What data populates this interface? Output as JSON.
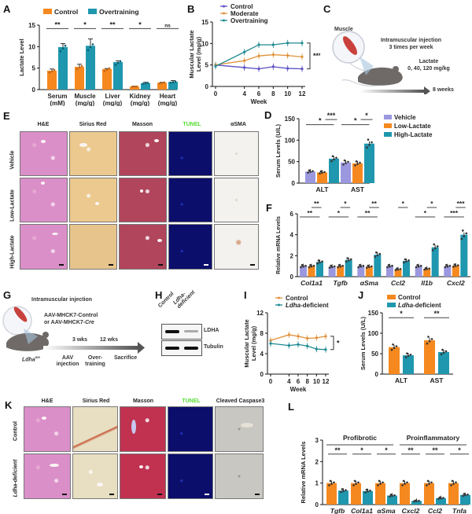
{
  "colors": {
    "orange": "#f5891f",
    "teal": "#1f97ae",
    "purple": "#9b98e0",
    "line_purple": "#5a4fc2",
    "line_orange": "#e0913a",
    "line_teal": "#1f8a92",
    "tunel_green": "#55dd33"
  },
  "panels": {
    "A": "A",
    "B": "B",
    "C": "C",
    "D": "D",
    "E": "E",
    "F": "F",
    "G": "G",
    "H": "H",
    "I": "I",
    "J": "J",
    "K": "K",
    "L": "L"
  },
  "chart_data": [
    {
      "id": "A",
      "type": "bar",
      "title": "",
      "ylabel": "Lactate Level",
      "xlabel": "",
      "ylim": [
        0,
        15
      ],
      "yticks": [
        "0",
        "5",
        "10",
        "15"
      ],
      "categories": [
        "Serum",
        "Muscle",
        "Liver",
        "Kidney",
        "Heart"
      ],
      "category_units": [
        "(mM)",
        "(mg/g)",
        "(mg/g)",
        "(mg/g)",
        "(mg/g)"
      ],
      "legend": [
        "Control",
        "Overtraining"
      ],
      "legend_position": "top",
      "series": [
        {
          "name": "Control",
          "values": [
            4.4,
            5.3,
            4.8,
            0.7,
            1.6
          ],
          "errors": [
            0.4,
            0.6,
            0.1,
            0.1,
            0.1
          ]
        },
        {
          "name": "Overtraining",
          "values": [
            9.9,
            10.2,
            6.4,
            1.5,
            1.8
          ],
          "errors": [
            0.8,
            1.6,
            0.3,
            0.2,
            0.3
          ]
        }
      ],
      "significance": [
        "**",
        "*",
        "**",
        "*",
        "ns"
      ]
    },
    {
      "id": "B",
      "type": "line",
      "ylabel": "Muscular Lactate Level (mg/g)",
      "xlabel": "Week",
      "xlim": [
        0,
        12
      ],
      "ylim": [
        0,
        15
      ],
      "x": [
        0,
        4,
        6,
        8,
        10,
        12
      ],
      "xticks": [
        "0",
        "4",
        "6",
        "8",
        "10",
        "12"
      ],
      "yticks": [
        "0",
        "5",
        "10",
        "15"
      ],
      "legend_position": "top",
      "series": [
        {
          "name": "Control",
          "values": [
            5.0,
            4.4,
            4.1,
            4.6,
            4.2,
            4.1
          ]
        },
        {
          "name": "Moderate",
          "values": [
            5.0,
            6.0,
            7.1,
            7.4,
            7.2,
            6.9
          ]
        },
        {
          "name": "Overtraining",
          "values": [
            4.7,
            8.0,
            9.7,
            9.7,
            10.1,
            10.1
          ]
        }
      ],
      "significance": "***"
    },
    {
      "id": "D",
      "type": "bar",
      "ylabel": "Serum Levels (U/L)",
      "ylim": [
        0,
        150
      ],
      "yticks": [
        "0",
        "50",
        "100",
        "150"
      ],
      "categories": [
        "ALT",
        "AST"
      ],
      "legend_position": "right",
      "series": [
        {
          "name": "Vehicle",
          "values": [
            27,
            48
          ]
        },
        {
          "name": "Low-Lactate",
          "values": [
            25,
            46
          ]
        },
        {
          "name": "High-Lactate",
          "values": [
            57,
            92
          ]
        }
      ],
      "significance": [
        {
          "category": "ALT",
          "outer": "*",
          "inner": "***"
        },
        {
          "category": "AST",
          "outer": "*",
          "inner": "*"
        }
      ]
    },
    {
      "id": "F",
      "type": "bar",
      "ylabel": "Relative mRNA Levels",
      "ylim": [
        0,
        6
      ],
      "yticks": [
        "0",
        "2",
        "4",
        "6"
      ],
      "categories": [
        "Col1a1",
        "Tgfb",
        "αSma",
        "Ccl2",
        "Il1b",
        "Cxcl2"
      ],
      "series": [
        {
          "name": "Vehicle",
          "values": [
            1.0,
            0.95,
            1.0,
            1.0,
            1.0,
            1.0
          ]
        },
        {
          "name": "Low-Lactate",
          "values": [
            1.0,
            1.0,
            0.95,
            0.7,
            0.75,
            1.05
          ]
        },
        {
          "name": "High-Lactate",
          "values": [
            1.4,
            1.6,
            2.1,
            1.5,
            2.8,
            4.0
          ]
        }
      ],
      "significance": [
        {
          "outer": "**",
          "inner": "**"
        },
        {
          "outer": "*",
          "inner": "*"
        },
        {
          "outer": "**",
          "inner": "**"
        },
        {
          "outer": "",
          "inner": "*"
        },
        {
          "outer": "*",
          "inner": "*"
        },
        {
          "outer": "***",
          "inner": "***"
        }
      ]
    },
    {
      "id": "I",
      "type": "line",
      "ylabel": "Muscular Lactate Level (mg/g)",
      "xlabel": "Week",
      "xlim": [
        0,
        12
      ],
      "ylim": [
        0,
        12
      ],
      "x": [
        0,
        4,
        6,
        8,
        10,
        12
      ],
      "xticks": [
        "0",
        "4",
        "6",
        "8",
        "10",
        "12"
      ],
      "yticks": [
        "0",
        "4",
        "8",
        "12"
      ],
      "series": [
        {
          "name": "Control",
          "values": [
            6.6,
            7.7,
            7.4,
            7.0,
            7.1,
            7.4
          ]
        },
        {
          "name": "Ldha-deficient",
          "values": [
            6.0,
            5.6,
            5.8,
            5.5,
            4.9,
            4.8
          ]
        }
      ],
      "significance": "*"
    },
    {
      "id": "J",
      "type": "bar",
      "ylabel": "Serum Levels (U/L)",
      "ylim": [
        0,
        150
      ],
      "yticks": [
        "0",
        "50",
        "100",
        "150"
      ],
      "categories": [
        "ALT",
        "AST"
      ],
      "series": [
        {
          "name": "Control",
          "values": [
            66,
            83
          ]
        },
        {
          "name": "Ldha-deficient",
          "values": [
            46,
            54
          ]
        }
      ],
      "significance": [
        "*",
        "**"
      ]
    },
    {
      "id": "L",
      "type": "bar",
      "ylabel": "Relative mRNA Levels",
      "ylim": [
        0,
        3
      ],
      "yticks": [
        "0",
        "1",
        "2",
        "3"
      ],
      "categories": [
        "Tgfb",
        "Col1a1",
        "αSma",
        "Cxcl2",
        "Ccl2",
        "Tnfa"
      ],
      "groups": [
        {
          "label": "Profibrotic",
          "members": [
            "Tgfb",
            "Col1a1",
            "αSma"
          ]
        },
        {
          "label": "Proinflammatory",
          "members": [
            "Cxcl2",
            "Ccl2",
            "Tnfa"
          ]
        }
      ],
      "series": [
        {
          "name": "Control",
          "values": [
            1.0,
            1.0,
            1.0,
            1.0,
            1.0,
            1.0
          ]
        },
        {
          "name": "Ldha-deficient",
          "values": [
            0.65,
            0.63,
            0.42,
            0.17,
            0.3,
            0.45
          ]
        }
      ],
      "significance": [
        "**",
        "*",
        "*",
        "**",
        "**",
        "*"
      ]
    }
  ],
  "schematic_C": {
    "muscle_label": "Muscle",
    "line1": "Intramuscular injection",
    "line2": "3 times per week",
    "lactate_label": "Lactate",
    "doses": "0, 40, 120 mg/kg",
    "duration": "8 weeks"
  },
  "histology_E": {
    "columns": [
      "H&E",
      "Sirius Red",
      "Masson",
      "TUNEL",
      "αSMA"
    ],
    "rows": [
      "Vehicle",
      "Low-Lactate",
      "High-Lactate"
    ]
  },
  "schematic_G": {
    "title": "Intramuscular injection",
    "vector1": "AAV-MHCK7-Control",
    "vector2_prefix": "or AAV-MHCK7-",
    "vector2_italic": "Cre",
    "t1": "3 wks",
    "t2": "12 wks",
    "genotype": "Ldha",
    "genotype_sup": "fl/fl",
    "step1a": "AAV",
    "step1b": "injection",
    "step2a": "Over-",
    "step2b": "training",
    "step3": "Sacrifice"
  },
  "blot_H": {
    "lanes": [
      "Control",
      "Ldha-deficient"
    ],
    "lane2_line1": "Ldha-",
    "lane2_line2": "deficient",
    "bands": [
      "LDHA",
      "Tubulin"
    ]
  },
  "histology_K": {
    "columns": [
      "H&E",
      "Sirius Red",
      "Masson",
      "TUNEL",
      "Cleaved Caspase3"
    ],
    "rows": [
      "Control",
      "Ldha-deficient"
    ]
  }
}
